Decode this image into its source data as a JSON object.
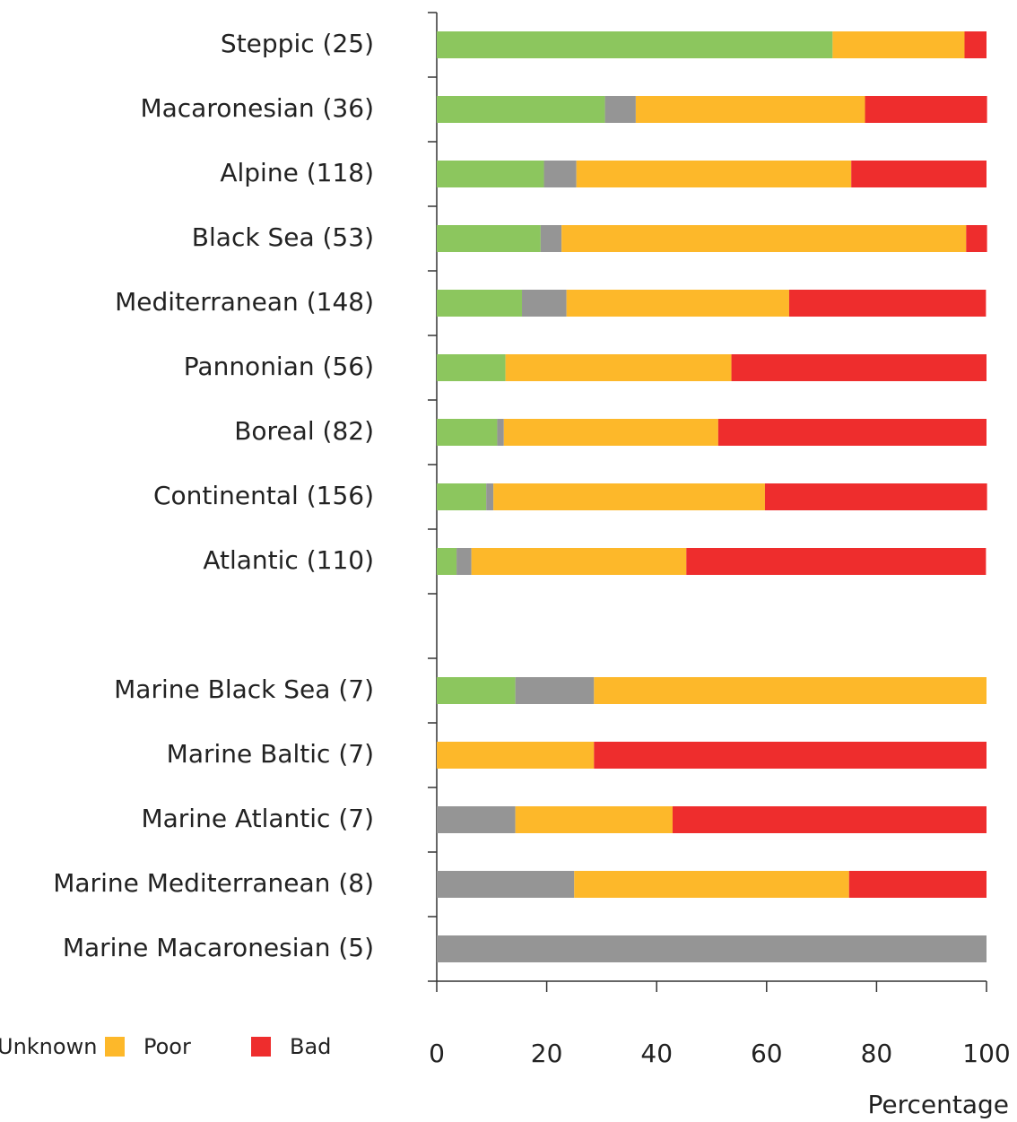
{
  "chart_data": {
    "type": "stacked_barh",
    "categories": [
      "Steppic (25)",
      "Macaronesian (36)",
      "Alpine (118)",
      "Black Sea (53)",
      "Mediterranean (148)",
      "Pannonian (56)",
      "Boreal (82)",
      "Continental (156)",
      "Atlantic (110)",
      null,
      "Marine Black Sea (7)",
      "Marine Baltic (7)",
      "Marine Atlantic (7)",
      "Marine Mediterranean (8)",
      "Marine Macaronesian (5)"
    ],
    "series": [
      {
        "color": "#8cc65e",
        "values": [
          72,
          30.6,
          19.5,
          18.9,
          15.5,
          12.5,
          11,
          9,
          3.6,
          null,
          14.3,
          0,
          0,
          0,
          0
        ]
      },
      {
        "name": "Unknown",
        "color": "#959595",
        "values": [
          0,
          5.6,
          5.9,
          3.8,
          8.1,
          0,
          1.2,
          1.3,
          2.7,
          null,
          14.3,
          0,
          14.3,
          25,
          100
        ]
      },
      {
        "name": "Poor",
        "color": "#fdb82a",
        "values": [
          24,
          41.7,
          50,
          73.6,
          40.5,
          41.1,
          39,
          49.4,
          39.1,
          null,
          71.4,
          28.6,
          28.6,
          50,
          0
        ]
      },
      {
        "name": "Bad",
        "color": "#ee2d2d",
        "values": [
          4,
          22.2,
          24.6,
          3.8,
          35.8,
          46.4,
          48.8,
          40.4,
          54.5,
          null,
          0,
          71.4,
          57.1,
          25,
          0
        ]
      }
    ],
    "xlabel": "Percentage",
    "xlim": [
      0,
      100
    ],
    "xticks": [
      0,
      20,
      40,
      60,
      80,
      100
    ]
  }
}
